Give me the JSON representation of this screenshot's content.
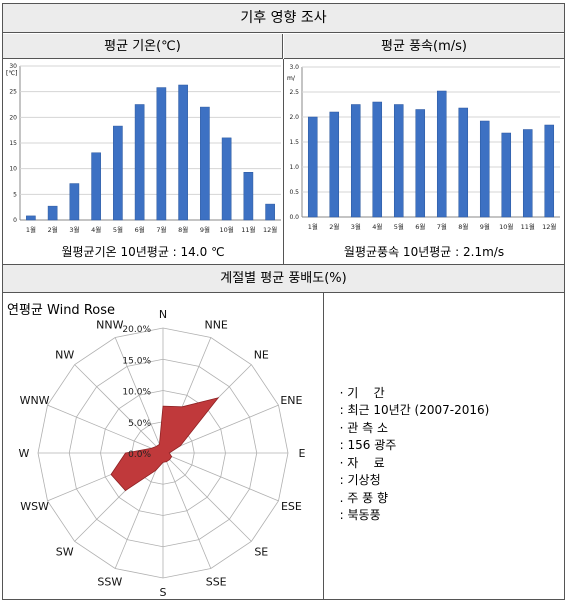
{
  "header": {
    "title": "기후 영향 조사",
    "section2_title": "계절별 평균 풍배도(%)"
  },
  "temperature_chart": {
    "title": "평균 기온(℃)",
    "unit_label": "[℃]",
    "caption": "월평균기온  10년평균 : 14.0 ℃",
    "bar_color": "#3d71c3"
  },
  "wind_speed_chart": {
    "title": "평균 풍속(m/s)",
    "unit_label": "m/",
    "caption": "월평균풍속  10년평균 : 2.1m/s",
    "bar_color": "#3d71c3"
  },
  "wind_rose": {
    "title": "연평균 Wind Rose",
    "fill_color": "#c0393b"
  },
  "info": {
    "period_label": "· 기    간",
    "period_value": ": 최근 10년간 (2007-2016)",
    "station_label": "· 관 측 소",
    "station_value": ": 156 광주",
    "source_label": "· 자    료",
    "source_value": ": 기상청",
    "wind_label": ". 주 풍 향",
    "wind_value": ": 북동풍"
  },
  "chart_data": [
    {
      "type": "bar",
      "title": "평균 기온(℃)",
      "categories": [
        "1월",
        "2월",
        "3월",
        "4월",
        "5월",
        "6월",
        "7월",
        "8월",
        "9월",
        "10월",
        "11월",
        "12월"
      ],
      "values": [
        0.8,
        2.7,
        7.1,
        13.1,
        18.3,
        22.5,
        25.8,
        26.3,
        22.0,
        16.0,
        9.3,
        3.1
      ],
      "ylim": [
        0,
        30
      ],
      "yticks": [
        0,
        5,
        10,
        15,
        20,
        25,
        30
      ],
      "ylabel": "[℃]",
      "grid": true
    },
    {
      "type": "bar",
      "title": "평균 풍속(m/s)",
      "categories": [
        "1월",
        "2월",
        "3월",
        "4월",
        "5월",
        "6월",
        "7월",
        "8월",
        "9월",
        "10월",
        "11월",
        "12월"
      ],
      "values": [
        2.0,
        2.1,
        2.25,
        2.3,
        2.25,
        2.15,
        2.52,
        2.18,
        1.92,
        1.68,
        1.75,
        1.84
      ],
      "ylim": [
        0,
        3.0
      ],
      "yticks": [
        0.0,
        0.5,
        1.0,
        1.5,
        2.0,
        2.5,
        3.0
      ],
      "ylabel": "m/",
      "grid": true
    },
    {
      "type": "radar",
      "title": "연평균 Wind Rose",
      "directions": [
        "N",
        "NNE",
        "NE",
        "ENE",
        "E",
        "ESE",
        "SE",
        "SSE",
        "S",
        "SSW",
        "SW",
        "WSW",
        "W",
        "WNW",
        "NW",
        "NNW"
      ],
      "values": [
        7.5,
        8.0,
        12.5,
        3.0,
        1.0,
        1.5,
        1.5,
        1.5,
        1.5,
        3.0,
        8.5,
        9.0,
        6.0,
        2.0,
        1.5,
        1.5
      ],
      "rlim": [
        0,
        20
      ],
      "rticks": [
        "0.0%",
        "5.0%",
        "10.0%",
        "15.0%",
        "20.0%"
      ]
    }
  ]
}
